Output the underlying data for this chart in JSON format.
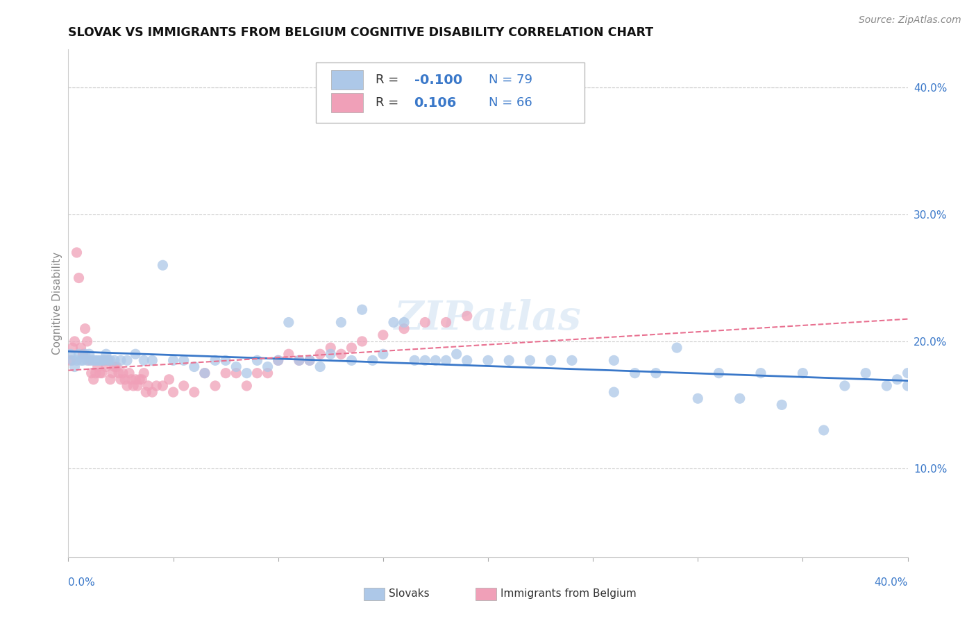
{
  "title": "SLOVAK VS IMMIGRANTS FROM BELGIUM COGNITIVE DISABILITY CORRELATION CHART",
  "source": "Source: ZipAtlas.com",
  "ylabel": "Cognitive Disability",
  "ylabel_right_ticks": [
    "10.0%",
    "20.0%",
    "30.0%",
    "40.0%"
  ],
  "ylabel_right_vals": [
    0.1,
    0.2,
    0.3,
    0.4
  ],
  "xmin": 0.0,
  "xmax": 0.4,
  "ymin": 0.03,
  "ymax": 0.43,
  "Slovak_R": -0.1,
  "Slovak_N": 79,
  "Belgian_R": 0.106,
  "Belgian_N": 66,
  "Slovak_color": "#adc8e8",
  "Belgian_color": "#f0a0b8",
  "Slovak_line_color": "#3a78c9",
  "Belgian_line_color": "#e87090",
  "Slovak_x": [
    0.001,
    0.002,
    0.003,
    0.004,
    0.005,
    0.006,
    0.007,
    0.008,
    0.009,
    0.01,
    0.011,
    0.012,
    0.013,
    0.014,
    0.015,
    0.016,
    0.017,
    0.018,
    0.019,
    0.02,
    0.022,
    0.025,
    0.028,
    0.032,
    0.036,
    0.04,
    0.045,
    0.05,
    0.055,
    0.06,
    0.065,
    0.07,
    0.075,
    0.08,
    0.085,
    0.09,
    0.095,
    0.1,
    0.105,
    0.11,
    0.115,
    0.12,
    0.125,
    0.13,
    0.135,
    0.14,
    0.145,
    0.15,
    0.155,
    0.16,
    0.165,
    0.17,
    0.175,
    0.18,
    0.185,
    0.19,
    0.2,
    0.21,
    0.22,
    0.23,
    0.24,
    0.26,
    0.27,
    0.28,
    0.29,
    0.31,
    0.33,
    0.35,
    0.37,
    0.38,
    0.39,
    0.395,
    0.4,
    0.26,
    0.3,
    0.32,
    0.34,
    0.36,
    0.5
  ],
  "Slovak_y": [
    0.19,
    0.185,
    0.18,
    0.185,
    0.19,
    0.185,
    0.185,
    0.19,
    0.185,
    0.19,
    0.185,
    0.185,
    0.185,
    0.185,
    0.185,
    0.185,
    0.185,
    0.19,
    0.185,
    0.185,
    0.185,
    0.185,
    0.185,
    0.19,
    0.185,
    0.185,
    0.26,
    0.185,
    0.185,
    0.18,
    0.175,
    0.185,
    0.185,
    0.18,
    0.175,
    0.185,
    0.18,
    0.185,
    0.215,
    0.185,
    0.185,
    0.18,
    0.19,
    0.215,
    0.185,
    0.225,
    0.185,
    0.19,
    0.215,
    0.215,
    0.185,
    0.185,
    0.185,
    0.185,
    0.19,
    0.185,
    0.185,
    0.185,
    0.185,
    0.185,
    0.185,
    0.185,
    0.175,
    0.175,
    0.195,
    0.175,
    0.175,
    0.175,
    0.165,
    0.175,
    0.165,
    0.17,
    0.175,
    0.16,
    0.155,
    0.155,
    0.15,
    0.13,
    0.165
  ],
  "Belgian_x": [
    0.001,
    0.002,
    0.003,
    0.004,
    0.005,
    0.006,
    0.007,
    0.008,
    0.009,
    0.01,
    0.011,
    0.012,
    0.013,
    0.014,
    0.015,
    0.016,
    0.017,
    0.018,
    0.019,
    0.02,
    0.021,
    0.022,
    0.023,
    0.024,
    0.025,
    0.026,
    0.027,
    0.028,
    0.029,
    0.03,
    0.031,
    0.032,
    0.033,
    0.034,
    0.035,
    0.036,
    0.037,
    0.038,
    0.04,
    0.042,
    0.045,
    0.048,
    0.05,
    0.055,
    0.06,
    0.065,
    0.07,
    0.075,
    0.08,
    0.085,
    0.09,
    0.095,
    0.1,
    0.105,
    0.11,
    0.115,
    0.12,
    0.125,
    0.13,
    0.135,
    0.14,
    0.15,
    0.16,
    0.17,
    0.18,
    0.19
  ],
  "Belgian_y": [
    0.185,
    0.195,
    0.2,
    0.27,
    0.25,
    0.195,
    0.19,
    0.21,
    0.2,
    0.185,
    0.175,
    0.17,
    0.175,
    0.18,
    0.175,
    0.175,
    0.185,
    0.18,
    0.185,
    0.17,
    0.175,
    0.18,
    0.18,
    0.175,
    0.17,
    0.175,
    0.17,
    0.165,
    0.175,
    0.17,
    0.165,
    0.17,
    0.165,
    0.17,
    0.17,
    0.175,
    0.16,
    0.165,
    0.16,
    0.165,
    0.165,
    0.17,
    0.16,
    0.165,
    0.16,
    0.175,
    0.165,
    0.175,
    0.175,
    0.165,
    0.175,
    0.175,
    0.185,
    0.19,
    0.185,
    0.185,
    0.19,
    0.195,
    0.19,
    0.195,
    0.2,
    0.205,
    0.21,
    0.215,
    0.215,
    0.22
  ],
  "legend_label_1": "Slovaks",
  "legend_label_2": "Immigrants from Belgium"
}
